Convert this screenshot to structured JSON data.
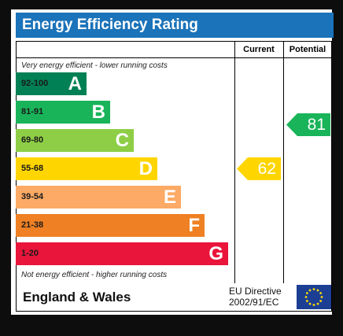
{
  "title": "Energy Efficiency Rating",
  "columns": {
    "current": "Current",
    "potential": "Potential"
  },
  "top_note": "Very energy efficient - lower running costs",
  "bottom_note": "Not energy efficient - higher running costs",
  "bands": [
    {
      "range": "92-100",
      "letter": "A",
      "color": "#008054"
    },
    {
      "range": "81-91",
      "letter": "B",
      "color": "#19b459"
    },
    {
      "range": "69-80",
      "letter": "C",
      "color": "#8dce46"
    },
    {
      "range": "55-68",
      "letter": "D",
      "color": "#ffd500"
    },
    {
      "range": "39-54",
      "letter": "E",
      "color": "#fcaa65"
    },
    {
      "range": "21-38",
      "letter": "F",
      "color": "#ef8023"
    },
    {
      "range": "1-20",
      "letter": "G",
      "color": "#e9153b"
    }
  ],
  "current": {
    "value": "62",
    "band": "D",
    "color": "#ffd500"
  },
  "potential": {
    "value": "81",
    "band": "B",
    "color": "#19b459"
  },
  "footer": {
    "region": "England & Wales",
    "directive_line1": "EU Directive",
    "directive_line2": "2002/91/EC"
  },
  "colors": {
    "title_bar": "#1b73b9",
    "eu_flag": "#1c3f94",
    "eu_stars": "#ffdd00"
  }
}
